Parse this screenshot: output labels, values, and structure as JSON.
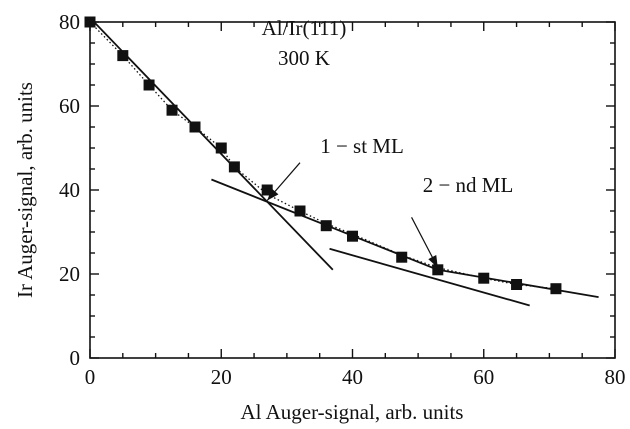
{
  "chart_data": {
    "type": "scatter",
    "xlabel": "Al Auger-signal, arb. units",
    "ylabel": "Ir Auger-signal, arb. units",
    "xlim": [
      0,
      80
    ],
    "ylim": [
      0,
      80
    ],
    "xticks": [
      0,
      20,
      40,
      60,
      80
    ],
    "yticks": [
      0,
      20,
      40,
      60,
      80
    ],
    "x_minor_step": 5,
    "y_minor_step": 5,
    "annotations": {
      "system": "Al/Ir(111)",
      "temperature": "300 K",
      "first_ml": "1 − st ML",
      "second_ml": "2 − nd  ML"
    },
    "series": [
      {
        "marker": "square",
        "x": [
          0,
          5,
          9,
          12.5,
          16,
          20,
          22,
          27,
          32,
          36,
          40,
          47.5,
          53,
          60,
          65,
          71
        ],
        "y": [
          80,
          72,
          65,
          59,
          55,
          50,
          45.5,
          40,
          35,
          31.5,
          29,
          24,
          21,
          19,
          17.5,
          16.5
        ]
      }
    ],
    "dotted_curve": {
      "x": [
        0,
        5,
        9,
        12.5,
        16,
        20,
        22,
        27,
        32,
        36,
        40,
        47.5,
        53,
        60,
        65,
        71
      ],
      "y": [
        80,
        72,
        65,
        59,
        55,
        50,
        45.5,
        39,
        35,
        32,
        29.5,
        24.5,
        21.5,
        19,
        17.5,
        16.5
      ]
    },
    "fit_lines": [
      {
        "x": [
          0,
          37
        ],
        "y": [
          81,
          21
        ]
      },
      {
        "x": [
          18.5,
          53
        ],
        "y": [
          42.5,
          21
        ]
      },
      {
        "x": [
          36.5,
          67
        ],
        "y": [
          26,
          12.5
        ]
      },
      {
        "x": [
          53,
          77.5
        ],
        "y": [
          21,
          14.5
        ]
      }
    ],
    "arrows": [
      {
        "from": [
          32,
          46.5
        ],
        "to": [
          27,
          37.5
        ]
      },
      {
        "from": [
          49,
          33.5
        ],
        "to": [
          53,
          21.5
        ]
      }
    ]
  }
}
